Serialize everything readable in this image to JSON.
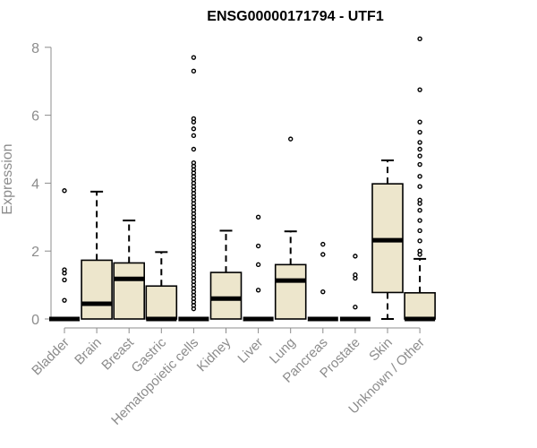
{
  "colors": {
    "box_fill": "#ede6cc",
    "stroke": "#000000",
    "axis": "#8c8c8c"
  },
  "chart_data": {
    "type": "boxplot",
    "title": "ENSG00000171794 - UTF1",
    "ylabel": "Expression",
    "xlabel": "",
    "ylim": [
      0,
      8.4
    ],
    "yticks": [
      0,
      2,
      4,
      6,
      8
    ],
    "grid": false,
    "legend": "none",
    "categories": [
      "Bladder",
      "Brain",
      "Breast",
      "Gastric",
      "Hematopoietic cells",
      "Kidney",
      "Liver",
      "Lung",
      "Pancreas",
      "Prostate",
      "Skin",
      "Unknown / Other"
    ],
    "boxes": [
      {
        "category": "Bladder",
        "q1": 0,
        "median": 0,
        "q3": 0,
        "whisker_low": 0,
        "whisker_high": 0,
        "outliers": [
          3.78,
          1.45,
          1.35,
          1.15,
          0.55
        ]
      },
      {
        "category": "Brain",
        "q1": 0,
        "median": 0.45,
        "q3": 1.73,
        "whisker_low": 0,
        "whisker_high": 3.75,
        "outliers": []
      },
      {
        "category": "Breast",
        "q1": 0,
        "median": 1.18,
        "q3": 1.65,
        "whisker_low": 0,
        "whisker_high": 2.9,
        "outliers": []
      },
      {
        "category": "Gastric",
        "q1": 0,
        "median": 0,
        "q3": 0.97,
        "whisker_low": 0,
        "whisker_high": 1.97,
        "outliers": []
      },
      {
        "category": "Hematopoietic cells",
        "q1": 0,
        "median": 0,
        "q3": 0,
        "whisker_low": 0,
        "whisker_high": 0,
        "outliers": [
          7.7,
          7.3,
          5.9,
          5.8,
          5.6,
          5.4,
          5.0,
          4.6,
          4.5,
          4.4,
          4.3,
          4.2,
          4.1,
          4.0,
          3.9,
          3.8,
          3.7,
          3.6,
          3.5,
          3.4,
          3.3,
          3.2,
          3.1,
          3.0,
          2.9,
          2.8,
          2.7,
          2.6,
          2.5,
          2.4,
          2.3,
          2.2,
          2.1,
          2.0,
          1.9,
          1.8,
          1.7,
          1.6,
          1.5,
          1.4,
          1.3,
          1.2,
          1.1,
          1.0,
          0.9,
          0.8,
          0.7,
          0.6,
          0.5,
          0.4,
          0.3
        ]
      },
      {
        "category": "Kidney",
        "q1": 0,
        "median": 0.6,
        "q3": 1.37,
        "whisker_low": 0,
        "whisker_high": 2.6,
        "outliers": []
      },
      {
        "category": "Liver",
        "q1": 0,
        "median": 0,
        "q3": 0,
        "whisker_low": 0,
        "whisker_high": 0,
        "outliers": [
          3.0,
          2.15,
          1.6,
          0.85
        ]
      },
      {
        "category": "Lung",
        "q1": 0,
        "median": 1.13,
        "q3": 1.6,
        "whisker_low": 0,
        "whisker_high": 2.58,
        "outliers": [
          5.3
        ]
      },
      {
        "category": "Pancreas",
        "q1": 0,
        "median": 0,
        "q3": 0,
        "whisker_low": 0,
        "whisker_high": 0,
        "outliers": [
          2.2,
          1.9,
          0.8
        ]
      },
      {
        "category": "Prostate",
        "q1": 0,
        "median": 0,
        "q3": 0,
        "whisker_low": 0,
        "whisker_high": 0,
        "outliers": [
          1.85,
          1.3,
          1.2,
          0.35
        ]
      },
      {
        "category": "Skin",
        "q1": 0.78,
        "median": 2.32,
        "q3": 3.98,
        "whisker_low": 0,
        "whisker_high": 4.67,
        "outliers": []
      },
      {
        "category": "Unknown / Other",
        "q1": 0,
        "median": 0,
        "q3": 0.77,
        "whisker_low": 0,
        "whisker_high": 1.77,
        "outliers": [
          8.25,
          6.75,
          5.8,
          5.5,
          5.2,
          5.0,
          4.8,
          4.55,
          4.2,
          3.9,
          3.5,
          3.4,
          3.2,
          2.9,
          2.6,
          2.3,
          2.0,
          1.9
        ]
      }
    ]
  }
}
